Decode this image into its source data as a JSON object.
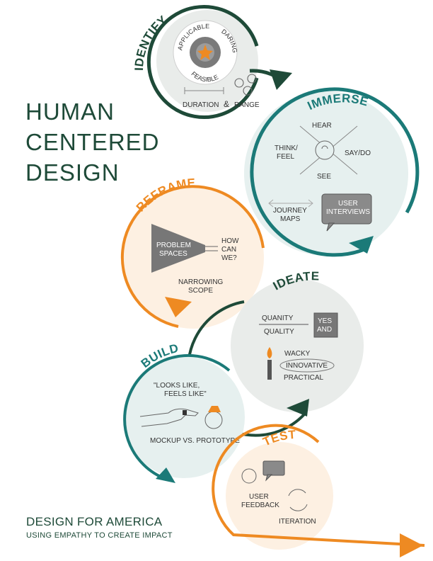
{
  "title": {
    "line1": "HUMAN",
    "line2": "CENTERED",
    "line3": "DESIGN"
  },
  "footer": {
    "main": "DESIGN FOR AMERICA",
    "sub": "USING EMPATHY TO CREATE IMPACT"
  },
  "colors": {
    "dark_green": "#1e4a38",
    "teal": "#1b7a78",
    "orange": "#ee8a22"
  },
  "stages": {
    "identify": {
      "title": "IDENTIFY",
      "wheel": [
        "APPLICABLE",
        "DARING",
        "FEASIBLE"
      ],
      "caption_left": "DURATION",
      "caption_amp": "&",
      "caption_right": "RANGE"
    },
    "immerse": {
      "title": "IMMERSE",
      "hear": "HEAR",
      "think": "THINK/",
      "feel": "FEEL",
      "saydo": "SAY/DO",
      "see": "SEE",
      "journey1": "JOURNEY",
      "journey2": "MAPS",
      "interviews1": "USER",
      "interviews2": "INTERVIEWS"
    },
    "reframe": {
      "title": "REFRAME",
      "problem1": "PROBLEM",
      "problem2": "SPACES",
      "how1": "HOW",
      "how2": "CAN",
      "how3": "WE?",
      "narrow1": "NARROWING",
      "narrow2": "SCOPE"
    },
    "ideate": {
      "title": "IDEATE",
      "quanity": "QUANITY",
      "quality": "QUALITY",
      "yes": "YES",
      "and": "AND",
      "wacky": "WACKY",
      "innovative": "INNOVATIVE",
      "practical": "PRACTICAL"
    },
    "build": {
      "title": "BUILD",
      "quote1": "\"LOOKS LIKE,",
      "quote2": "FEELS LIKE\"",
      "caption": "MOCKUP VS. PROTOTYPE"
    },
    "test": {
      "title": "TEST",
      "user1": "USER",
      "user2": "FEEDBACK",
      "iteration": "ITERATION"
    }
  }
}
